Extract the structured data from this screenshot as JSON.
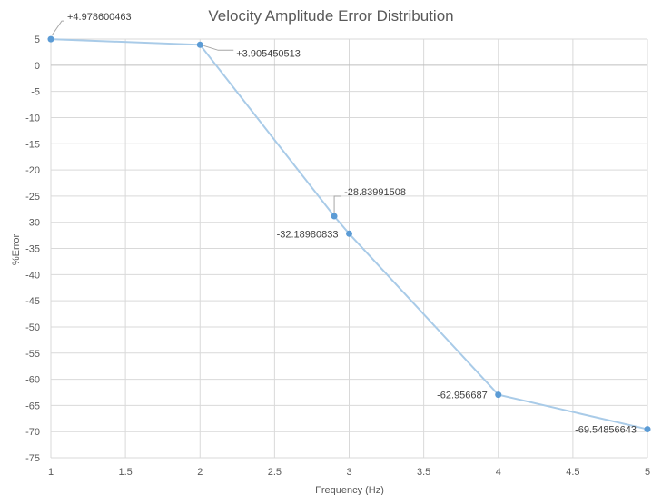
{
  "chart_data": {
    "type": "line",
    "title": "Velocity Amplitude Error Distribution",
    "xlabel": "Frequency (Hz)",
    "ylabel": "%Error",
    "x_ticks": [
      "1",
      "1.5",
      "2",
      "2.5",
      "3",
      "3.5",
      "4",
      "4.5",
      "5"
    ],
    "y_ticks": [
      "5",
      "0",
      "-5",
      "-10",
      "-15",
      "-20",
      "-25",
      "-30",
      "-35",
      "-40",
      "-45",
      "-50",
      "-55",
      "-60",
      "-65",
      "-70",
      "-75"
    ],
    "xlim": [
      1,
      5
    ],
    "ylim": [
      -75,
      5
    ],
    "grid": true,
    "series": [
      {
        "color": "#a9cbe8",
        "marker_color": "#5b9bd5",
        "points": [
          {
            "x": 1,
            "y": 4.978600463,
            "label": "+4.978600463"
          },
          {
            "x": 2,
            "y": 3.905450513,
            "label": "+3.905450513"
          },
          {
            "x": 2.9,
            "y": -28.83991508,
            "label": "-28.83991508"
          },
          {
            "x": 3,
            "y": -32.18980833,
            "label": "-32.18980833"
          },
          {
            "x": 4,
            "y": -62.956687,
            "label": "-62.956687"
          },
          {
            "x": 5,
            "y": -69.54856643,
            "label": "-69.54856643"
          }
        ]
      }
    ]
  }
}
